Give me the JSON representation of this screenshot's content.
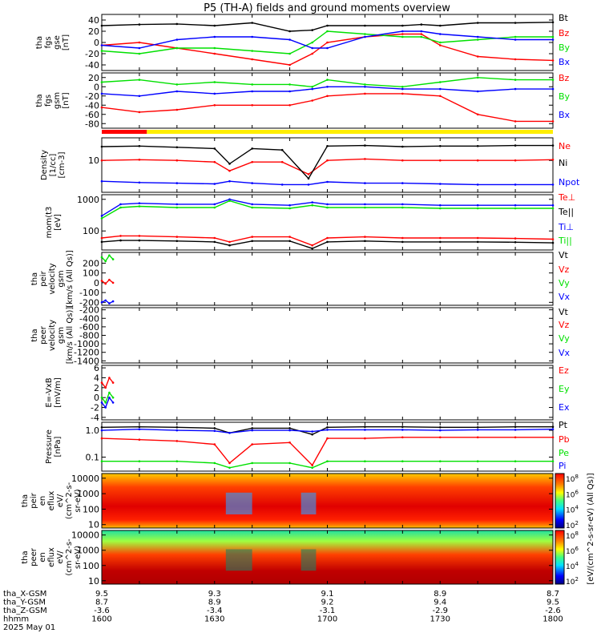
{
  "title": "P5 (TH-A) fields and ground moments overview",
  "colors": {
    "black": "#000000",
    "red": "#ff0000",
    "green": "#00e000",
    "blue": "#0000ff",
    "yellow": "#ffee00"
  },
  "chart_data": [
    {
      "type": "line",
      "id": "fgs_gse",
      "ylabel": [
        "tha",
        "fgs",
        "gse",
        "[nT]"
      ],
      "ylim": [
        -50,
        50
      ],
      "ticks": [
        "40",
        "20",
        "0",
        "-20",
        "-40"
      ],
      "tick_values": [
        40,
        20,
        0,
        -20,
        -40
      ],
      "x": [
        1600,
        1610,
        1620,
        1630,
        1640,
        1650,
        1656,
        1700,
        1710,
        1720,
        1725,
        1730,
        1740,
        1750,
        1800
      ],
      "series": [
        {
          "name": "Bt",
          "color": "black",
          "values": [
            30,
            32,
            33,
            30,
            35,
            20,
            22,
            30,
            30,
            30,
            32,
            30,
            35,
            35,
            36
          ]
        },
        {
          "name": "Bz",
          "color": "red",
          "values": [
            -5,
            0,
            -10,
            -20,
            -30,
            -40,
            -20,
            0,
            10,
            15,
            15,
            -5,
            -25,
            -30,
            -32
          ]
        },
        {
          "name": "By",
          "color": "green",
          "values": [
            -15,
            -20,
            -10,
            -10,
            -15,
            -20,
            0,
            20,
            15,
            10,
            10,
            0,
            5,
            10,
            10
          ]
        },
        {
          "name": "Bx",
          "color": "blue",
          "values": [
            -5,
            -10,
            5,
            10,
            10,
            5,
            -10,
            -10,
            10,
            20,
            20,
            15,
            10,
            5,
            5
          ]
        }
      ]
    },
    {
      "type": "line",
      "id": "fgs_gsm",
      "ylabel": [
        "tha",
        "fgs",
        "gsm",
        "[nT]"
      ],
      "ylim": [
        -90,
        30
      ],
      "ticks": [
        "20",
        "0",
        "-20",
        "-40",
        "-60",
        "-80"
      ],
      "tick_values": [
        20,
        0,
        -20,
        -40,
        -60,
        -80
      ],
      "x": [
        1600,
        1610,
        1620,
        1630,
        1640,
        1650,
        1656,
        1700,
        1710,
        1720,
        1730,
        1740,
        1750,
        1800
      ],
      "series": [
        {
          "name": "Bz",
          "color": "red",
          "values": [
            -45,
            -55,
            -50,
            -40,
            -40,
            -40,
            -30,
            -20,
            -15,
            -15,
            -20,
            -60,
            -75,
            -75
          ]
        },
        {
          "name": "By",
          "color": "green",
          "values": [
            10,
            15,
            5,
            10,
            5,
            5,
            0,
            15,
            5,
            0,
            10,
            20,
            15,
            15
          ]
        },
        {
          "name": "Bx",
          "color": "blue",
          "values": [
            -15,
            -20,
            -10,
            -15,
            -10,
            -10,
            -5,
            0,
            0,
            -5,
            -5,
            -10,
            -5,
            -5
          ]
        }
      ]
    },
    {
      "type": "line",
      "id": "density",
      "ylabel": [
        "Density",
        "[1/cc]",
        "[cm-3]"
      ],
      "log": true,
      "ylim": [
        1.2,
        45
      ],
      "ticks": [
        "10"
      ],
      "tick_values": [
        10
      ],
      "x": [
        1600,
        1610,
        1620,
        1630,
        1634,
        1640,
        1648,
        1655,
        1700,
        1710,
        1720,
        1730,
        1740,
        1750,
        1800
      ],
      "series": [
        {
          "name": "Ne",
          "color": "red",
          "values": [
            10,
            10.5,
            10,
            9,
            5,
            9,
            9,
            4,
            10,
            11,
            10,
            10,
            10,
            10,
            10.5
          ]
        },
        {
          "name": "Ni",
          "color": "black",
          "values": [
            25,
            26,
            24,
            22,
            8,
            22,
            20,
            3,
            26,
            27,
            25,
            26,
            26,
            27,
            27
          ]
        },
        {
          "name": "Npot",
          "color": "blue",
          "values": [
            2.5,
            2.3,
            2.2,
            2.1,
            2.5,
            2.2,
            2.0,
            2.0,
            2.4,
            2.2,
            2.2,
            2.1,
            2.0,
            2.0,
            2.0
          ]
        }
      ]
    },
    {
      "type": "line",
      "id": "temperature",
      "ylabel": [
        "mom(t3",
        "[eV]"
      ],
      "log": true,
      "ylim": [
        25,
        1400
      ],
      "ticks": [
        "1000",
        "100"
      ],
      "tick_values": [
        1000,
        100
      ],
      "x": [
        1600,
        1605,
        1610,
        1620,
        1630,
        1634,
        1640,
        1650,
        1656,
        1700,
        1710,
        1720,
        1730,
        1740,
        1750,
        1800
      ],
      "series": [
        {
          "name": "Te⊥",
          "color": "red",
          "values": [
            60,
            70,
            70,
            65,
            60,
            45,
            65,
            65,
            35,
            60,
            65,
            60,
            60,
            60,
            58,
            55
          ]
        },
        {
          "name": "Te||",
          "color": "black",
          "values": [
            45,
            50,
            50,
            48,
            45,
            35,
            48,
            48,
            28,
            45,
            48,
            45,
            45,
            45,
            44,
            42
          ]
        },
        {
          "name": "Ti⊥",
          "color": "blue",
          "values": [
            300,
            700,
            750,
            700,
            700,
            1000,
            700,
            650,
            800,
            700,
            700,
            700,
            650,
            650,
            650,
            650
          ]
        },
        {
          "name": "Ti||",
          "color": "green",
          "values": [
            250,
            550,
            600,
            550,
            550,
            900,
            550,
            520,
            650,
            550,
            550,
            550,
            520,
            520,
            520,
            520
          ]
        }
      ]
    },
    {
      "type": "line",
      "id": "peir_velocity",
      "ylabel": [
        "tha",
        "peir",
        "velocity",
        "gsm",
        "[km/s (All Qs)]"
      ],
      "ylim": [
        -230,
        310
      ],
      "ticks": [
        "200",
        "100",
        "0",
        "-100",
        "-200"
      ],
      "tick_values": [
        200,
        100,
        0,
        -100,
        -200
      ],
      "x": [
        1600,
        1601,
        1602,
        1603
      ],
      "series": [
        {
          "name": "Vt",
          "color": "black",
          "values": [
            null,
            null,
            null,
            null
          ]
        },
        {
          "name": "Vz",
          "color": "red",
          "values": [
            20,
            -10,
            30,
            0
          ]
        },
        {
          "name": "Vy",
          "color": "green",
          "values": [
            260,
            220,
            280,
            240
          ]
        },
        {
          "name": "Vx",
          "color": "blue",
          "values": [
            -200,
            -180,
            -210,
            -190
          ]
        }
      ]
    },
    {
      "type": "line",
      "id": "peer_velocity",
      "ylabel": [
        "tha",
        "peer",
        "velocity",
        "gsm",
        "[km/s (All Qs)]"
      ],
      "ylim": [
        -1450,
        -150
      ],
      "ticks": [
        "-200",
        "-400",
        "-600",
        "-800",
        "-1000",
        "-1200",
        "-1400"
      ],
      "tick_values": [
        -200,
        -400,
        -600,
        -800,
        -1000,
        -1200,
        -1400
      ],
      "x": [],
      "series": [
        {
          "name": "Vt",
          "color": "black",
          "values": []
        },
        {
          "name": "Vz",
          "color": "red",
          "values": []
        },
        {
          "name": "Vy",
          "color": "green",
          "values": []
        },
        {
          "name": "Vx",
          "color": "blue",
          "values": []
        }
      ]
    },
    {
      "type": "line",
      "id": "efield",
      "ylabel": [
        "E=-VxB",
        "[mV/m]"
      ],
      "ylim": [
        -4.5,
        6.5
      ],
      "ticks": [
        "6",
        "4",
        "2",
        "0",
        "-2",
        "-4"
      ],
      "tick_values": [
        6,
        4,
        2,
        0,
        -2,
        -4
      ],
      "x": [
        1600,
        1601,
        1602,
        1603
      ],
      "series": [
        {
          "name": "Ez",
          "color": "red",
          "values": [
            3,
            2,
            4,
            3
          ]
        },
        {
          "name": "Ey",
          "color": "green",
          "values": [
            0,
            -1,
            1,
            0
          ]
        },
        {
          "name": "Ex",
          "color": "blue",
          "values": [
            -1,
            -2,
            0,
            -1
          ]
        }
      ]
    },
    {
      "type": "line",
      "id": "pressure",
      "ylabel": [
        "Pressure",
        "[nPa]"
      ],
      "log": true,
      "ylim": [
        0.03,
        2.0
      ],
      "ticks": [
        "1.0",
        "0.1"
      ],
      "tick_values": [
        1.0,
        0.1
      ],
      "x": [
        1600,
        1610,
        1620,
        1630,
        1634,
        1640,
        1650,
        1656,
        1700,
        1710,
        1720,
        1730,
        1740,
        1750,
        1800
      ],
      "series": [
        {
          "name": "Pt",
          "color": "black",
          "values": [
            1.3,
            1.35,
            1.3,
            1.2,
            0.8,
            1.2,
            1.2,
            0.7,
            1.3,
            1.35,
            1.35,
            1.3,
            1.3,
            1.35,
            1.35
          ]
        },
        {
          "name": "Pb",
          "color": "red",
          "values": [
            0.5,
            0.45,
            0.4,
            0.3,
            0.06,
            0.3,
            0.35,
            0.05,
            0.5,
            0.5,
            0.55,
            0.55,
            0.55,
            0.55,
            0.55
          ]
        },
        {
          "name": "Pe",
          "color": "green",
          "values": [
            0.07,
            0.07,
            0.07,
            0.06,
            0.04,
            0.06,
            0.06,
            0.04,
            0.07,
            0.07,
            0.07,
            0.07,
            0.07,
            0.07,
            0.07
          ]
        },
        {
          "name": "Pi",
          "color": "blue",
          "values": [
            1.0,
            1.1,
            1.0,
            0.95,
            0.8,
            1.0,
            1.0,
            0.9,
            1.05,
            1.05,
            1.05,
            1.0,
            1.05,
            1.05,
            1.1
          ]
        }
      ]
    },
    {
      "type": "heatmap",
      "id": "peir_eflux",
      "ylabel": [
        "tha",
        "peir",
        "en",
        "eflux",
        "eV/",
        "(cm^2-s-",
        "sr-eV)"
      ],
      "log": true,
      "ylim": [
        6,
        20000
      ],
      "ticks": [
        "10000",
        "1000",
        "100",
        "10"
      ],
      "tick_values": [
        10000,
        1000,
        100,
        10
      ],
      "colorbar_label": "[eV/(cm^2-s-sr-eV) (All Qs)]",
      "colorbar_ticks": [
        "10^8",
        "10^6",
        "10^4",
        "10^2"
      ]
    },
    {
      "type": "heatmap",
      "id": "peer_eflux",
      "ylabel": [
        "tha",
        "peer",
        "en",
        "eflux",
        "eV/",
        "(cm^2-s-",
        "sr-eV)"
      ],
      "log": true,
      "ylim": [
        6,
        20000
      ],
      "ticks": [
        "10000",
        "1000",
        "100",
        "10"
      ],
      "tick_values": [
        10000,
        1000,
        100,
        10
      ],
      "colorbar_label": "[eV/(cm^2-s-sr-eV) (All Qs)]",
      "colorbar_ticks": [
        "10^8",
        "10^6",
        "10^4",
        "10^2"
      ]
    }
  ],
  "x_axis": {
    "xlim": [
      1600,
      1800
    ],
    "row_labels": [
      "tha_X-GSM",
      "tha_Y-GSM",
      "tha_Z-GSM",
      "hhmm",
      "2025 May 01"
    ],
    "columns": [
      {
        "t": 1600,
        "vals": [
          "9.5",
          "8.7",
          "-3.6",
          "1600"
        ]
      },
      {
        "t": 1630,
        "vals": [
          "9.3",
          "8.9",
          "-3.4",
          "1630"
        ]
      },
      {
        "t": 1700,
        "vals": [
          "9.1",
          "9.2",
          "-3.1",
          "1700"
        ]
      },
      {
        "t": 1730,
        "vals": [
          "8.9",
          "9.4",
          "-2.9",
          "1730"
        ]
      },
      {
        "t": 1800,
        "vals": [
          "8.7",
          "9.5",
          "-2.6",
          "1800"
        ]
      }
    ]
  },
  "mode_bar": [
    {
      "from": 1600,
      "to": 1612,
      "color": "red"
    },
    {
      "from": 1612,
      "to": 1800,
      "color": "yellow"
    }
  ]
}
